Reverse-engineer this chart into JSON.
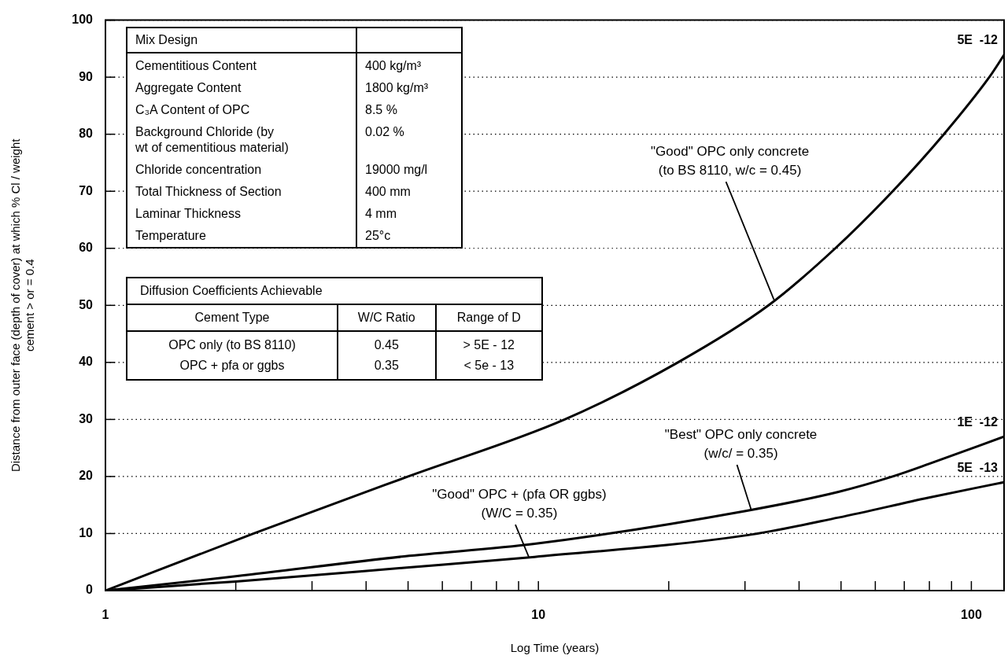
{
  "chart_data": [
    {
      "type": "line",
      "xlabel": "Log Time (years)",
      "ylabel": "Distance from outer face (depth of cover) at which % Cl / weight\ncement > or = 0.4",
      "log": "x",
      "grid": "y",
      "legend": false,
      "marker": "none",
      "line_style": "solid",
      "xlim": [
        1,
        119
      ],
      "ylim": [
        0,
        100
      ],
      "xticks": [
        1,
        {
          "value": 2,
          "label": null
        },
        {
          "value": 3,
          "label": null
        },
        {
          "value": 4,
          "label": null
        },
        {
          "value": 5,
          "label": null
        },
        {
          "value": 6,
          "label": null
        },
        {
          "value": 7,
          "label": null
        },
        {
          "value": 8,
          "label": null
        },
        {
          "value": 9,
          "label": null
        },
        10,
        {
          "value": 20,
          "label": null
        },
        {
          "value": 30,
          "label": null
        },
        {
          "value": 40,
          "label": null
        },
        {
          "value": 50,
          "label": null
        },
        {
          "value": 60,
          "label": null
        },
        {
          "value": 70,
          "label": null
        },
        {
          "value": 80,
          "label": null
        },
        {
          "value": 90,
          "label": null
        },
        100
      ],
      "yticks": [
        0,
        10,
        20,
        30,
        40,
        50,
        60,
        70,
        80,
        90,
        100
      ],
      "series": [
        {
          "name": "5E  -12",
          "color": "#000000",
          "x": [
            1,
            2.2,
            5,
            11.5,
            21,
            34,
            48.5,
            65.8,
            86.4,
            110,
            119
          ],
          "values": [
            0,
            10,
            20,
            30,
            40,
            50,
            60,
            70,
            80,
            90,
            93.9
          ]
        },
        {
          "name": "1E  -12",
          "color": "#000000",
          "x": [
            1,
            2,
            4.9,
            9.8,
            30.3,
            49.3,
            65.8,
            79.8,
            119
          ],
          "values": [
            0,
            2.5,
            6.0,
            8.2,
            14,
            17.3,
            20,
            22.2,
            27
          ]
        },
        {
          "name": "5E  -13",
          "color": "#000000",
          "x": [
            1,
            2,
            4.9,
            9.8,
            30.3,
            49.3,
            79.8,
            119
          ],
          "values": [
            0,
            1.6,
            4.0,
            5.9,
            9.7,
            12.8,
            16.3,
            19
          ]
        }
      ],
      "annotations": [
        {
          "text": "\"Good\" OPC only concrete\n(to BS 8110, w/c = 0.45)",
          "x": 35,
          "y": 51
        },
        {
          "text": "\"Best\" OPC only concrete\n(w/c/ = 0.35)",
          "x": 31,
          "y": 14.2
        },
        {
          "text": "\"Good\" OPC + (pfa OR ggbs)\n(W/C = 0.35)",
          "x": 9.5,
          "y": 5.9
        }
      ]
    },
    {
      "type": "other",
      "title": "Mix Design",
      "categories": [
        "Cementitious Content",
        "Aggregate Content",
        "C₃A Content of OPC",
        "Background Chloride (by\nwt of cementitious material)",
        "Chloride concentration",
        "Total Thickness of Section",
        "Laminar Thickness",
        "Temperature"
      ],
      "annotations": [
        "400 kg/m³",
        "1800 kg/m³",
        "8.5 %",
        "0.02 %",
        "19000 mg/l",
        "400 mm",
        "4 mm",
        "25°c"
      ]
    },
    {
      "type": "other",
      "title": "Diffusion Coefficients Achievable",
      "categories": [
        "Cement Type",
        "W/C Ratio",
        "Range of D"
      ],
      "annotations": [
        "OPC only (to BS 8110)",
        "0.45",
        "> 5E - 12",
        "OPC + pfa or ggbs",
        "0.35",
        "< 5e - 13"
      ]
    }
  ]
}
